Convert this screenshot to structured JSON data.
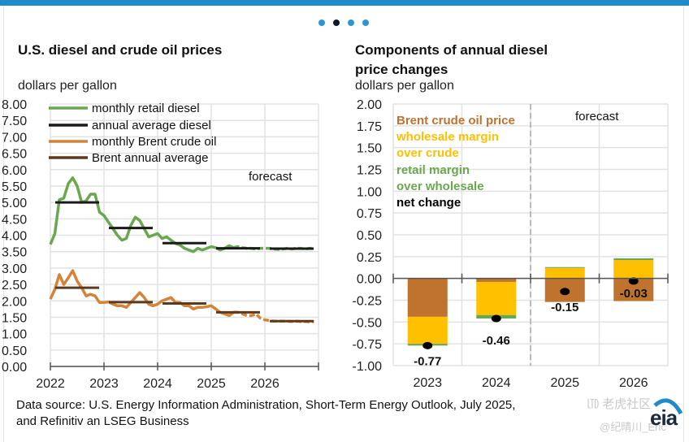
{
  "carousel": {
    "dots": 4,
    "active_index": 1
  },
  "left": {
    "title": "U.S. diesel and crude oil prices",
    "unit": "dollars per gallon",
    "forecast_label": "forecast"
  },
  "right": {
    "title_line1": "Components of annual diesel",
    "title_line2": "price changes",
    "unit": "dollars per gallon",
    "forecast_label": "forecast"
  },
  "source_line1": "Data source: U.S. Energy Information Administration, Short-Term Energy Outlook, July 2025,",
  "source_line2": "and Refinitiv an LSEG Business",
  "watermark_line1": "㋏ 老虎社区",
  "watermark_line2": "@纪晴川_Eric",
  "logo_text": "eia",
  "colors": {
    "diesel_monthly": "#6aa84f",
    "diesel_annual": "#1a1a1a",
    "brent_monthly": "#d4843a",
    "brent_annual": "#5b3a1e",
    "crude_component": "#c0722f",
    "wholesale_component": "#ffc000",
    "retail_component": "#6aa84f",
    "net_change": "#000000",
    "accent": "#1f8bcb"
  },
  "chart_data": [
    {
      "type": "line",
      "title": "U.S. diesel and crude oil prices",
      "ylabel": "dollars per gallon",
      "xlabel": "",
      "ylim": [
        0,
        8
      ],
      "yticks": [
        "0.00",
        "0.50",
        "1.00",
        "1.50",
        "2.00",
        "2.50",
        "3.00",
        "3.50",
        "4.00",
        "4.50",
        "5.00",
        "5.50",
        "6.00",
        "6.50",
        "7.00",
        "7.50",
        "8.00"
      ],
      "xticks": [
        "2022",
        "2023",
        "2024",
        "2025",
        "2026"
      ],
      "x_range": [
        2022,
        2027
      ],
      "grid": true,
      "legend": "top-left",
      "forecast_start": 2025.5,
      "series": [
        {
          "name": "monthly retail diesel",
          "kind": "monthly",
          "start": 2022,
          "values": [
            3.72,
            4.05,
            5.08,
            5.13,
            5.57,
            5.75,
            5.5,
            5.0,
            5.05,
            5.25,
            5.25,
            4.7,
            4.6,
            4.4,
            4.2,
            4.0,
            3.85,
            3.9,
            4.3,
            4.55,
            4.45,
            4.2,
            3.95,
            4.0,
            4.05,
            3.9,
            3.95,
            3.85,
            3.75,
            3.7,
            3.6,
            3.55,
            3.5,
            3.6,
            3.55,
            3.6,
            3.65,
            3.62,
            3.55,
            3.6,
            3.68,
            3.62,
            3.65,
            3.62,
            3.6,
            3.6,
            3.58,
            3.6,
            3.6,
            3.6,
            3.58,
            3.57,
            3.58,
            3.6,
            3.58,
            3.6,
            3.6,
            3.58,
            3.6,
            3.6
          ]
        },
        {
          "name": "annual average diesel",
          "kind": "annual",
          "years": [
            2022,
            2023,
            2024,
            2025,
            2026
          ],
          "values": [
            5.0,
            4.22,
            3.76,
            3.6,
            3.59
          ]
        },
        {
          "name": "monthly Brent crude oil",
          "kind": "monthly",
          "start": 2022,
          "values": [
            2.05,
            2.35,
            2.8,
            2.5,
            2.7,
            2.92,
            2.6,
            2.4,
            2.15,
            2.2,
            2.15,
            1.95,
            1.95,
            1.97,
            1.9,
            1.85,
            1.85,
            1.8,
            1.95,
            2.1,
            2.25,
            2.1,
            1.9,
            1.85,
            1.9,
            2.0,
            2.05,
            2.1,
            1.95,
            1.95,
            1.85,
            1.85,
            1.75,
            1.8,
            1.8,
            1.82,
            1.85,
            1.75,
            1.65,
            1.6,
            1.55,
            1.65,
            1.65,
            1.6,
            1.55,
            1.55,
            1.6,
            1.47,
            1.42,
            1.4,
            1.38,
            1.38,
            1.38,
            1.38,
            1.37,
            1.38,
            1.37,
            1.37,
            1.36,
            1.37
          ]
        },
        {
          "name": "Brent annual average",
          "kind": "annual",
          "years": [
            2022,
            2023,
            2024,
            2025,
            2026
          ],
          "values": [
            2.4,
            1.96,
            1.92,
            1.65,
            1.38
          ]
        }
      ]
    },
    {
      "type": "bar",
      "stacked": true,
      "title": "Components of annual diesel price changes",
      "ylabel": "dollars per gallon",
      "xlabel": "",
      "ylim": [
        -1.0,
        2.0
      ],
      "yticks": [
        "-1.00",
        "-0.75",
        "-0.50",
        "-0.25",
        "0.00",
        "0.25",
        "0.50",
        "0.75",
        "1.00",
        "1.25",
        "1.50",
        "1.75",
        "2.00"
      ],
      "categories": [
        "2023",
        "2024",
        "2025",
        "2026"
      ],
      "forecast_from": "2025",
      "grid": true,
      "legend": "top-left",
      "series": [
        {
          "name": "Brent crude oil price",
          "values": [
            -0.44,
            -0.04,
            -0.27,
            -0.26
          ]
        },
        {
          "name": "wholesale margin over crude",
          "values": [
            -0.31,
            -0.38,
            0.12,
            0.21
          ]
        },
        {
          "name": "retail margin over wholesale",
          "values": [
            -0.02,
            -0.04,
            0.01,
            0.02
          ]
        }
      ],
      "net_change": {
        "name": "net change",
        "values": [
          -0.77,
          -0.46,
          -0.15,
          -0.03
        ],
        "labels": [
          "-0.77",
          "-0.46",
          "-0.15",
          "-0.03"
        ]
      },
      "legend_labels": [
        {
          "text": "Brent crude oil price",
          "color_key": "crude_component"
        },
        {
          "text": "wholesale margin",
          "color_key": "wholesale_component"
        },
        {
          "text": " over crude",
          "color_key": "wholesale_component"
        },
        {
          "text": "retail margin",
          "color_key": "retail_component"
        },
        {
          "text": "  over wholesale",
          "color_key": "retail_component"
        },
        {
          "text": "net change",
          "color_key": "net_change"
        }
      ]
    }
  ]
}
